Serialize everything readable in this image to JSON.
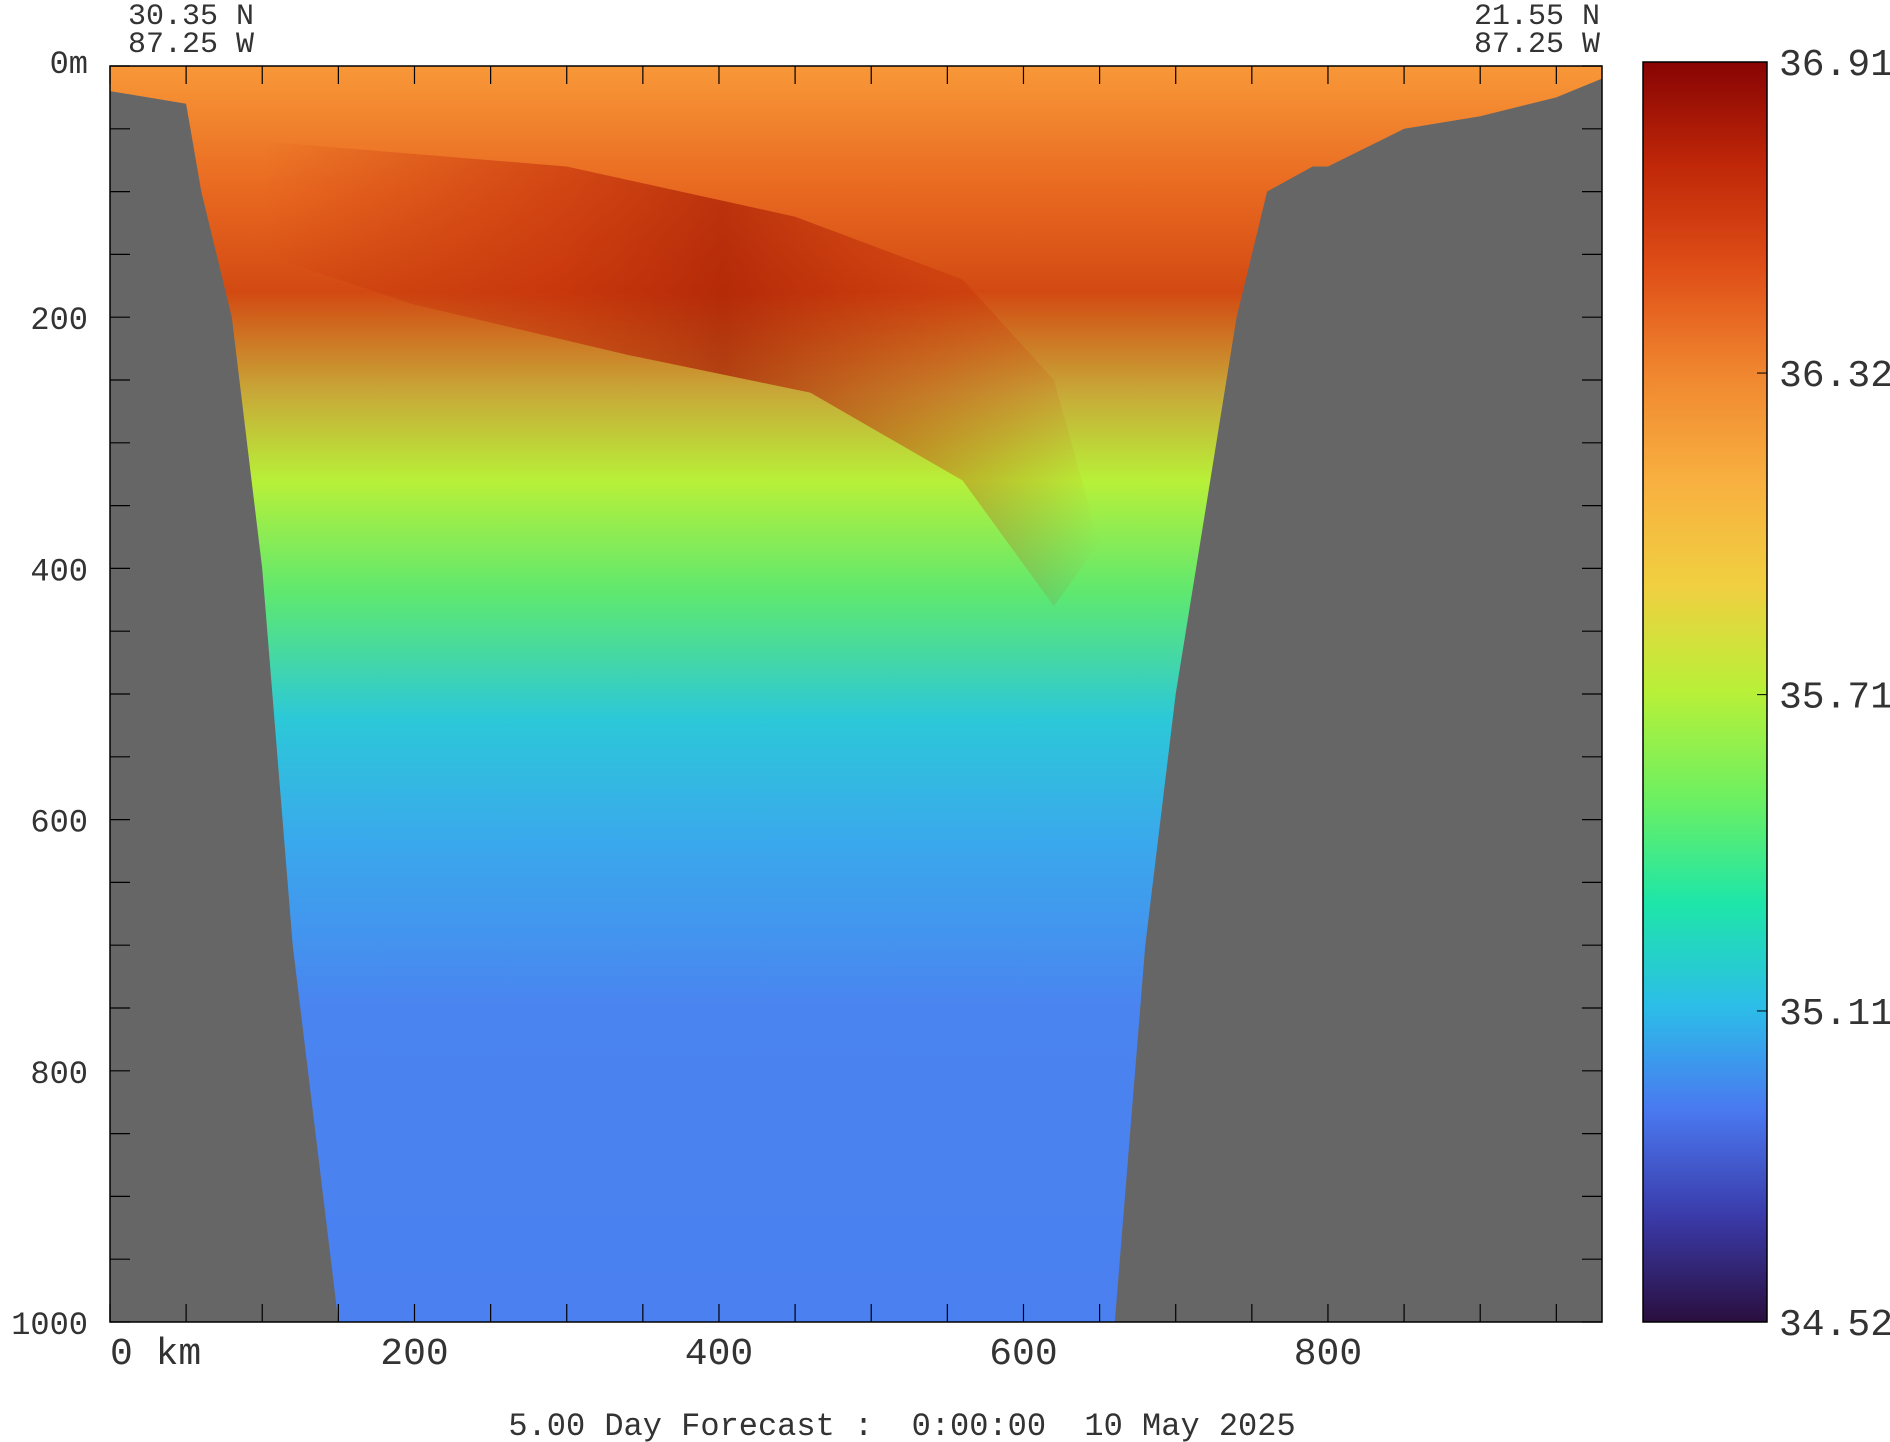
{
  "chart_data": {
    "type": "heatmap",
    "title": "5.00 Day Forecast :  0:00:00  10 May 2025",
    "start_location": {
      "lat": "30.35 N",
      "lon": "87.25 W"
    },
    "end_location": {
      "lat": "21.55 N",
      "lon": "87.25 W"
    },
    "x_axis": {
      "unit_label": "km",
      "range": [
        0,
        980
      ],
      "ticks": [
        0,
        200,
        400,
        600,
        800
      ],
      "tick_labels": [
        "0 km",
        "200",
        "400",
        "600",
        "800"
      ],
      "minor_step": 50
    },
    "y_axis": {
      "range": [
        0,
        1000
      ],
      "reversed": true,
      "ticks": [
        0,
        200,
        400,
        600,
        800,
        1000
      ],
      "tick_labels": [
        "0m",
        "200",
        "400",
        "600",
        "800",
        "1000"
      ],
      "minor_step": 50
    },
    "colorbar": {
      "range": [
        34.52,
        36.91
      ],
      "tick_values": [
        36.91,
        36.32,
        35.71,
        35.11,
        34.52
      ],
      "tick_labels": [
        "36.91",
        "36.32",
        "35.71",
        "35.11",
        "34.52"
      ],
      "colormap": [
        "#2a0f3e",
        "#3a3aa8",
        "#4a78f0",
        "#2cbde8",
        "#1ee6a8",
        "#6ef060",
        "#b8f038",
        "#f0d040",
        "#f8b040",
        "#f08830",
        "#e05018",
        "#c02808",
        "#880404"
      ]
    },
    "seafloor_profile": {
      "x_km": [
        0,
        50,
        60,
        80,
        100,
        120,
        150,
        180,
        200,
        300,
        400,
        500,
        600,
        660,
        680,
        700,
        720,
        740,
        760,
        790,
        800,
        850,
        900,
        950,
        980
      ],
      "depth_m": [
        20,
        30,
        100,
        200,
        400,
        700,
        1000,
        1000,
        1000,
        1000,
        1000,
        1000,
        1000,
        1000,
        700,
        500,
        350,
        200,
        100,
        80,
        80,
        50,
        40,
        25,
        10
      ]
    },
    "land_color": "#666666"
  }
}
